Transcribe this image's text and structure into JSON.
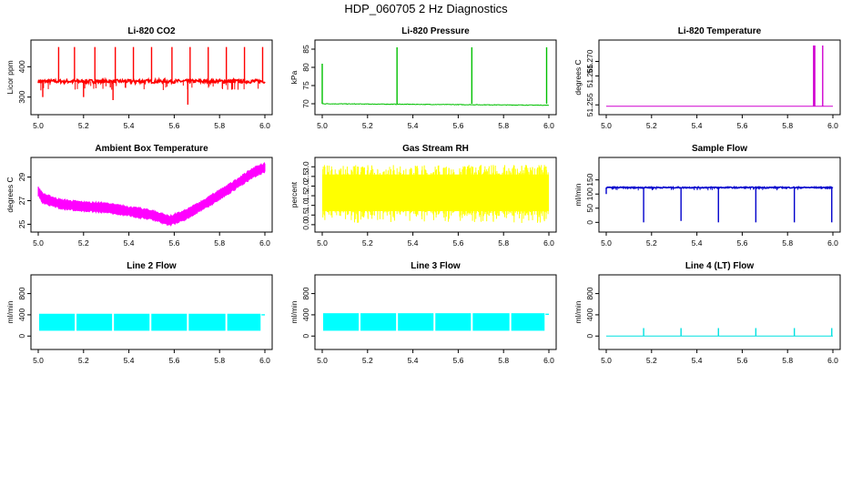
{
  "figure": {
    "title": "HDP_060705  2 Hz Diagnostics"
  },
  "chart_data": [
    {
      "type": "line",
      "title": "Li-820 CO2",
      "xlabel": "",
      "ylabel": "Licor ppm",
      "xlim": [
        5.0,
        6.0
      ],
      "ylim": [
        260,
        470
      ],
      "x_ticks": [
        "5.0",
        "5.2",
        "5.4",
        "5.6",
        "5.8",
        "6.0"
      ],
      "y_ticks": [
        "300",
        "400"
      ],
      "y_tick_values": [
        300,
        400
      ],
      "series": [
        {
          "color": "#ff0000",
          "style": "noisy",
          "baseline": 352,
          "noise": 6,
          "floor": 270,
          "ceil": 468,
          "spikes": [
            [
              5.02,
              300
            ],
            [
              5.09,
              465
            ],
            [
              5.16,
              465
            ],
            [
              5.2,
              300
            ],
            [
              5.25,
              465
            ],
            [
              5.33,
              290
            ],
            [
              5.34,
              465
            ],
            [
              5.42,
              465
            ],
            [
              5.5,
              465
            ],
            [
              5.59,
              465
            ],
            [
              5.66,
              275
            ],
            [
              5.67,
              465
            ],
            [
              5.75,
              465
            ],
            [
              5.83,
              465
            ],
            [
              5.91,
              465
            ],
            [
              5.99,
              465
            ]
          ]
        }
      ]
    },
    {
      "type": "line",
      "title": "Li-820 Pressure",
      "xlabel": "",
      "ylabel": "kPa",
      "xlim": [
        5.0,
        6.0
      ],
      "ylim": [
        68.5,
        86
      ],
      "x_ticks": [
        "5.0",
        "5.2",
        "5.4",
        "5.6",
        "5.8",
        "6.0"
      ],
      "y_ticks": [
        "70",
        "75",
        "80",
        "85"
      ],
      "y_tick_values": [
        70,
        75,
        80,
        85
      ],
      "series": [
        {
          "color": "#00c000",
          "style": "drift",
          "start": 70.0,
          "end": 69.6,
          "noise": 0.08,
          "spikes": [
            [
              5.0,
              81
            ],
            [
              5.33,
              85.5
            ],
            [
              5.66,
              85.5
            ],
            [
              5.99,
              85.5
            ]
          ]
        }
      ]
    },
    {
      "type": "line",
      "title": "Li-820 Temperature",
      "xlabel": "",
      "ylabel": "degrees C",
      "xlim": [
        5.0,
        6.0
      ],
      "ylim": [
        51.2535,
        51.2755
      ],
      "x_ticks": [
        "5.0",
        "5.2",
        "5.4",
        "5.6",
        "5.8",
        "6.0"
      ],
      "y_ticks": [
        "51.255",
        "51.265",
        "51.270"
      ],
      "y_tick_values": [
        51.255,
        51.265,
        51.27
      ],
      "series": [
        {
          "color": "#d000d0",
          "style": "flat",
          "value": 51.2545,
          "spikes": [
            [
              5.915,
              51.2755
            ],
            [
              5.92,
              51.2755
            ],
            [
              5.955,
              51.2755
            ]
          ]
        }
      ]
    },
    {
      "type": "area",
      "title": "Ambient Box Temperature",
      "xlabel": "",
      "ylabel": "degrees C",
      "xlim": [
        5.0,
        6.0
      ],
      "ylim": [
        24.8,
        30.2
      ],
      "x_ticks": [
        "5.0",
        "5.2",
        "5.4",
        "5.6",
        "5.8",
        "6.0"
      ],
      "y_ticks": [
        "25",
        "27",
        "29"
      ],
      "y_tick_values": [
        25,
        27,
        29
      ],
      "series": [
        {
          "color": "#ff00ff",
          "style": "band",
          "curve": [
            [
              5.0,
              27.8
            ],
            [
              5.02,
              27.2
            ],
            [
              5.1,
              26.7
            ],
            [
              5.2,
              26.5
            ],
            [
              5.3,
              26.4
            ],
            [
              5.4,
              26.1
            ],
            [
              5.5,
              25.8
            ],
            [
              5.58,
              25.3
            ],
            [
              5.65,
              25.8
            ],
            [
              5.75,
              26.9
            ],
            [
              5.85,
              28.1
            ],
            [
              5.95,
              29.4
            ],
            [
              6.0,
              29.8
            ]
          ],
          "halfwidth": 0.45
        }
      ]
    },
    {
      "type": "area",
      "title": "Gas Stream RH",
      "xlabel": "",
      "ylabel": "percent",
      "xlim": [
        5.0,
        6.0
      ],
      "ylim": [
        -0.1,
        3.2
      ],
      "x_ticks": [
        "5.0",
        "5.2",
        "5.4",
        "5.6",
        "5.8",
        "6.0"
      ],
      "y_ticks": [
        "0.0",
        "0.5",
        "1.0",
        "1.5",
        "2.0",
        "2.5",
        "3.0"
      ],
      "y_tick_values": [
        0.0,
        0.5,
        1.0,
        1.5,
        2.0,
        2.5,
        3.0
      ],
      "series": [
        {
          "color": "#ffff00",
          "style": "noiseband",
          "low": 0.7,
          "high": 2.6,
          "maxv": 3.1,
          "minv": 0.05
        }
      ]
    },
    {
      "type": "line",
      "title": "Sample Flow",
      "xlabel": "",
      "ylabel": "ml/min",
      "xlim": [
        5.0,
        6.0
      ],
      "ylim": [
        -15,
        210
      ],
      "x_ticks": [
        "5.0",
        "5.2",
        "5.4",
        "5.6",
        "5.8",
        "6.0"
      ],
      "y_ticks": [
        "0",
        "50",
        "100",
        "150"
      ],
      "y_tick_values": [
        0,
        50,
        100,
        150
      ],
      "series": [
        {
          "color": "#0000cc",
          "style": "noisy",
          "baseline": 123,
          "noise": 2,
          "floor": -5,
          "ceil": 135,
          "spikes": [
            [
              5.0,
              100
            ],
            [
              5.165,
              0
            ],
            [
              5.33,
              5
            ],
            [
              5.495,
              0
            ],
            [
              5.66,
              0
            ],
            [
              5.83,
              0
            ],
            [
              5.995,
              0
            ]
          ]
        }
      ]
    },
    {
      "type": "area",
      "title": "Line 2 Flow",
      "xlabel": "",
      "ylabel": "ml/min",
      "xlim": [
        5.0,
        6.0
      ],
      "ylim": [
        -150,
        1050
      ],
      "x_ticks": [
        "5.0",
        "5.2",
        "5.4",
        "5.6",
        "5.8",
        "6.0"
      ],
      "y_ticks": [
        "0",
        "400",
        "800"
      ],
      "y_tick_values": [
        0,
        400,
        800
      ],
      "series": [
        {
          "color": "#00ffff",
          "style": "blocks",
          "low": 100,
          "high": 420,
          "gaps": [
            5.165,
            5.33,
            5.495,
            5.66,
            5.83
          ],
          "end": 5.985,
          "tail": 400
        }
      ]
    },
    {
      "type": "area",
      "title": "Line 3 Flow",
      "xlabel": "",
      "ylabel": "ml/min",
      "xlim": [
        5.0,
        6.0
      ],
      "ylim": [
        -150,
        1050
      ],
      "x_ticks": [
        "5.0",
        "5.2",
        "5.4",
        "5.6",
        "5.8",
        "6.0"
      ],
      "y_ticks": [
        "0",
        "400",
        "800"
      ],
      "y_tick_values": [
        0,
        400,
        800
      ],
      "series": [
        {
          "color": "#00ffff",
          "style": "blocks",
          "low": 100,
          "high": 430,
          "gaps": [
            5.165,
            5.33,
            5.495,
            5.66,
            5.83
          ],
          "end": 5.985,
          "tail": 410
        }
      ]
    },
    {
      "type": "line",
      "title": "Line 4 (LT) Flow",
      "xlabel": "",
      "ylabel": "ml/min",
      "xlim": [
        5.0,
        6.0
      ],
      "ylim": [
        -150,
        1050
      ],
      "x_ticks": [
        "5.0",
        "5.2",
        "5.4",
        "5.6",
        "5.8",
        "6.0"
      ],
      "y_ticks": [
        "0",
        "400",
        "800"
      ],
      "y_tick_values": [
        0,
        400,
        800
      ],
      "series": [
        {
          "color": "#00e0e0",
          "style": "flat",
          "value": 0,
          "spikes": [
            [
              5.165,
              150
            ],
            [
              5.33,
              150
            ],
            [
              5.495,
              150
            ],
            [
              5.66,
              150
            ],
            [
              5.83,
              150
            ],
            [
              5.995,
              150
            ]
          ]
        }
      ]
    }
  ]
}
